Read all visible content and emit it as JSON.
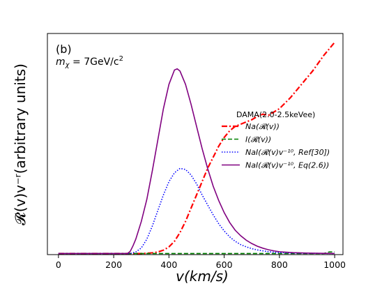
{
  "chart_data": {
    "type": "line",
    "panel_label": "(b)",
    "annotation": "m_χ = 7GeV/c²",
    "xlabel": "v(km/s)",
    "ylabel": "𝓡(v)v⁻ʳ(arbitrary units)",
    "xlim": [
      -40,
      1030
    ],
    "ylim": [
      0,
      1.0
    ],
    "xticks": [
      0,
      200,
      400,
      600,
      800,
      1000
    ],
    "yticks_shown": false,
    "grid": false,
    "legend": {
      "title": "DAMA(2.0-2.5keVee)",
      "placement": "right-middle",
      "entries": [
        "Na(𝓡(v))",
        "I(𝓡(v))",
        "NaI(𝓡(v)v⁻¹⁰, Ref[30])",
        "NaI(𝓡(v)v⁻¹⁰, Eq(2.6))"
      ]
    },
    "series": [
      {
        "name": "Na(𝓡(v))",
        "color": "#ff0000",
        "style": "dashdot",
        "x": [
          0,
          300,
          320,
          340,
          360,
          380,
          400,
          420,
          440,
          460,
          480,
          500,
          520,
          540,
          560,
          580,
          600,
          620,
          640,
          660,
          680,
          700,
          720,
          740,
          760,
          780,
          800,
          840,
          880,
          920,
          960,
          1000
        ],
        "y": [
          0.005,
          0.005,
          0.006,
          0.008,
          0.012,
          0.02,
          0.035,
          0.06,
          0.1,
          0.15,
          0.21,
          0.27,
          0.33,
          0.39,
          0.44,
          0.49,
          0.53,
          0.56,
          0.58,
          0.59,
          0.6,
          0.61,
          0.625,
          0.635,
          0.63,
          0.645,
          0.66,
          0.71,
          0.77,
          0.83,
          0.9,
          0.96
        ]
      },
      {
        "name": "I(𝓡(v))",
        "color": "#008000",
        "style": "dashed",
        "x": [
          0,
          200,
          400,
          600,
          800,
          960,
          980,
          1000
        ],
        "y": [
          0.005,
          0.005,
          0.005,
          0.005,
          0.005,
          0.005,
          0.012,
          0.012
        ]
      },
      {
        "name": "NaI(𝓡(v)v⁻¹⁰, Ref[30])",
        "color": "#0000ff",
        "style": "dotted",
        "x": [
          0,
          260,
          280,
          300,
          320,
          340,
          360,
          380,
          400,
          420,
          440,
          460,
          480,
          500,
          520,
          540,
          560,
          580,
          600,
          620,
          640,
          660,
          680,
          700,
          720,
          740,
          760,
          780,
          800,
          850,
          900,
          1000
        ],
        "y": [
          0.005,
          0.005,
          0.012,
          0.03,
          0.07,
          0.13,
          0.2,
          0.27,
          0.33,
          0.37,
          0.39,
          0.385,
          0.36,
          0.32,
          0.27,
          0.225,
          0.18,
          0.14,
          0.107,
          0.08,
          0.06,
          0.045,
          0.035,
          0.027,
          0.021,
          0.017,
          0.013,
          0.011,
          0.009,
          0.007,
          0.006,
          0.005
        ]
      },
      {
        "name": "NaI(𝓡(v)v⁻¹⁰, Eq(2.6))",
        "color": "#800080",
        "style": "solid",
        "x": [
          0,
          250,
          260,
          270,
          280,
          300,
          320,
          340,
          360,
          380,
          400,
          420,
          430,
          440,
          460,
          480,
          500,
          520,
          540,
          560,
          580,
          600,
          620,
          640,
          660,
          680,
          700,
          720,
          740,
          760,
          780,
          800,
          850,
          900,
          1000
        ],
        "y": [
          0.005,
          0.005,
          0.015,
          0.04,
          0.07,
          0.15,
          0.25,
          0.38,
          0.52,
          0.66,
          0.77,
          0.835,
          0.84,
          0.83,
          0.77,
          0.68,
          0.58,
          0.48,
          0.39,
          0.31,
          0.245,
          0.19,
          0.145,
          0.11,
          0.085,
          0.065,
          0.05,
          0.038,
          0.029,
          0.022,
          0.017,
          0.013,
          0.009,
          0.007,
          0.005
        ]
      }
    ]
  }
}
